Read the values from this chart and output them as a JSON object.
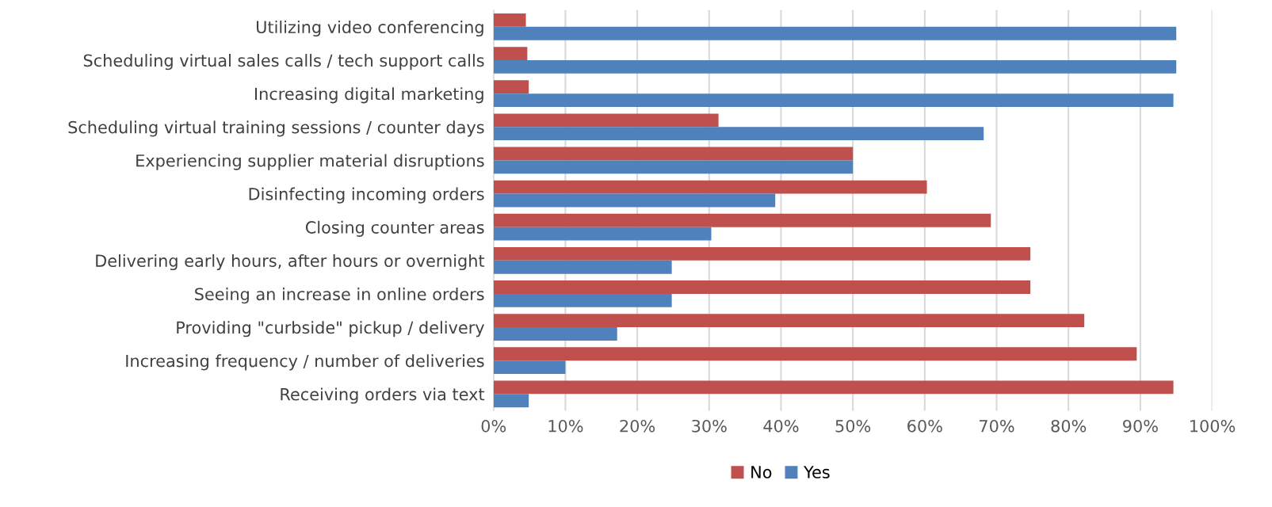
{
  "chart_data": {
    "type": "bar",
    "orientation": "horizontal",
    "categories": [
      "Utilizing video conferencing",
      "Scheduling virtual sales calls / tech support calls",
      "Increasing digital marketing",
      "Scheduling virtual training sessions / counter days",
      "Experiencing supplier material disruptions",
      "Disinfecting incoming orders",
      "Closing counter areas",
      "Delivering early hours, after hours or overnight",
      "Seeing an increase in online orders",
      "Providing \"curbside\" pickup / delivery",
      "Increasing frequency / number of deliveries",
      "Receiving orders via text"
    ],
    "series": [
      {
        "name": "No",
        "color": "#c0504d",
        "values": [
          4.5,
          4.7,
          4.9,
          31.3,
          50,
          60.3,
          69.2,
          74.7,
          74.7,
          82.2,
          89.5,
          94.6
        ]
      },
      {
        "name": "Yes",
        "color": "#4f81bd",
        "values": [
          95,
          95,
          94.6,
          68.2,
          50,
          39.2,
          30.3,
          24.8,
          24.8,
          17.2,
          10,
          4.9
        ]
      }
    ],
    "xlim": [
      0,
      100
    ],
    "xticks": [
      {
        "value": 0,
        "label": "0%"
      },
      {
        "value": 10,
        "label": "10%"
      },
      {
        "value": 20,
        "label": "20%"
      },
      {
        "value": 30,
        "label": "30%"
      },
      {
        "value": 40,
        "label": "40%"
      },
      {
        "value": 50,
        "label": "50%"
      },
      {
        "value": 60,
        "label": "60%"
      },
      {
        "value": 70,
        "label": "70%"
      },
      {
        "value": 80,
        "label": "80%"
      },
      {
        "value": 90,
        "label": "90%"
      },
      {
        "value": 100,
        "label": "100%"
      }
    ],
    "grid": "x",
    "legend": "bottom"
  }
}
